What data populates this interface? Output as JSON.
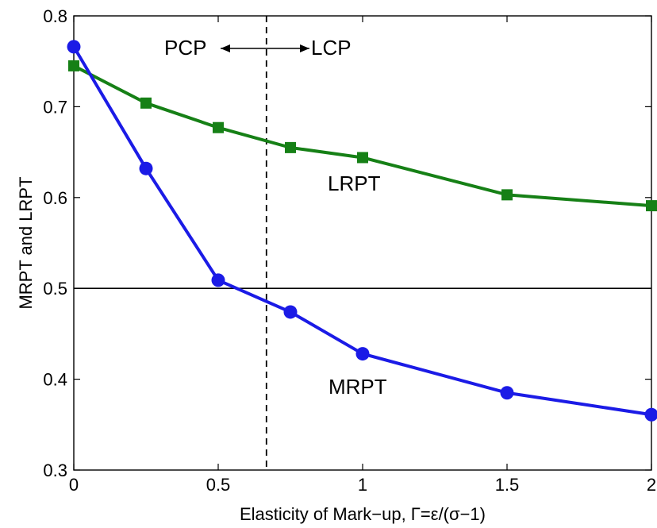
{
  "chart_data": {
    "type": "line",
    "xlabel": "Elasticity of Mark−up, Γ=ε/(σ−1)",
    "ylabel": "MRPT and LRPT",
    "xlim": [
      0,
      2
    ],
    "ylim": [
      0.3,
      0.8
    ],
    "xticks": [
      "0",
      "0.5",
      "1",
      "1.5",
      "2"
    ],
    "yticks": [
      "0.3",
      "0.4",
      "0.5",
      "0.6",
      "0.7",
      "0.8"
    ],
    "grid": false,
    "x": [
      0,
      0.25,
      0.5,
      0.75,
      1,
      1.5,
      2
    ],
    "series": [
      {
        "name": "LRPT",
        "color": "#168016",
        "marker": "square",
        "values": [
          0.745,
          0.704,
          0.677,
          0.655,
          0.644,
          0.603,
          0.591
        ]
      },
      {
        "name": "MRPT",
        "color": "#1b1be6",
        "marker": "circle",
        "values": [
          0.766,
          0.632,
          0.509,
          0.474,
          0.428,
          0.385,
          0.361
        ]
      }
    ],
    "reference_lines": {
      "horizontal_y": 0.5,
      "vertical_dashed_x": 0.667
    },
    "annotations": {
      "left_region": "PCP",
      "right_region": "LCP"
    }
  }
}
